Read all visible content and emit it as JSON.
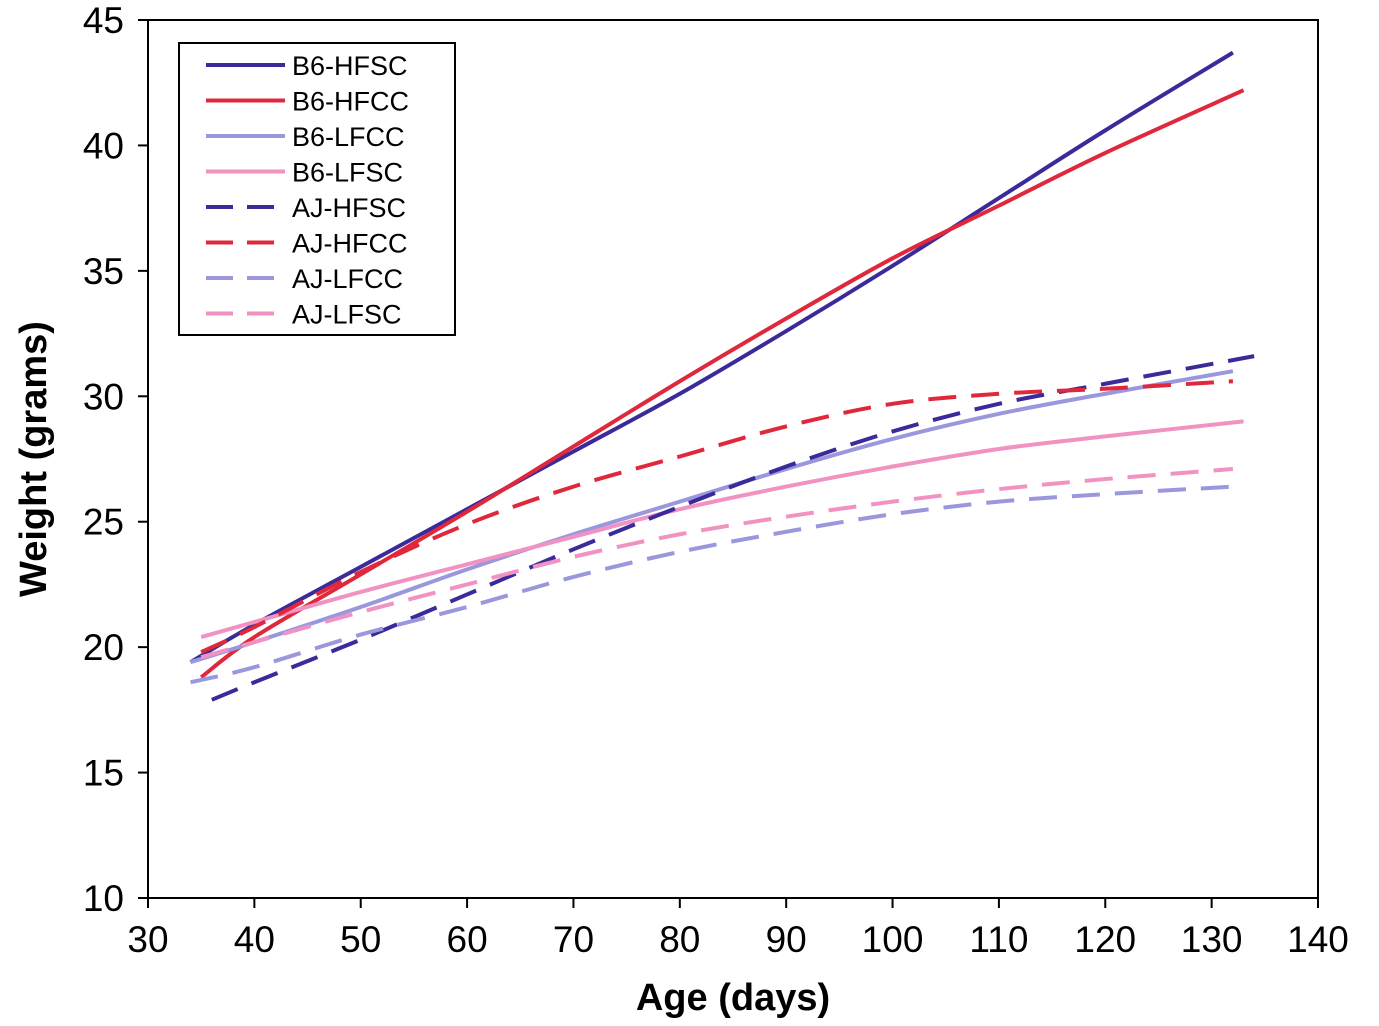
{
  "chart_data": {
    "type": "line",
    "xlabel": "Age (days)",
    "ylabel": "Weight (grams)",
    "xlim": [
      30,
      140
    ],
    "ylim": [
      10,
      45
    ],
    "xticks": [
      30,
      40,
      50,
      60,
      70,
      80,
      90,
      100,
      110,
      120,
      130,
      140
    ],
    "yticks": [
      10,
      15,
      20,
      25,
      30,
      35,
      40,
      45
    ],
    "xtick_labels": [
      "30",
      "40",
      "50",
      "60",
      "70",
      "80",
      "90",
      "100",
      "110",
      "120",
      "130",
      "140"
    ],
    "ytick_labels": [
      "10",
      "15",
      "20",
      "25",
      "30",
      "35",
      "40",
      "45"
    ],
    "grid": false,
    "legend_position": "top-left",
    "series": [
      {
        "name": "B6-HFSC",
        "color": "#3a2a9a",
        "dash": "solid",
        "x": [
          34,
          40,
          50,
          60,
          70,
          80,
          90,
          100,
          110,
          120,
          132
        ],
        "y": [
          19.4,
          20.9,
          23.2,
          25.5,
          27.8,
          30.1,
          32.6,
          35.2,
          37.9,
          40.6,
          43.7
        ]
      },
      {
        "name": "B6-HFCC",
        "color": "#e0283c",
        "dash": "solid",
        "x": [
          35,
          40,
          50,
          60,
          70,
          80,
          90,
          100,
          110,
          120,
          133
        ],
        "y": [
          18.8,
          20.4,
          22.9,
          25.4,
          28.0,
          30.6,
          33.1,
          35.5,
          37.6,
          39.7,
          42.2
        ]
      },
      {
        "name": "B6-LFCC",
        "color": "#9b97dd",
        "dash": "solid",
        "x": [
          34,
          40,
          50,
          60,
          70,
          80,
          90,
          100,
          110,
          120,
          132
        ],
        "y": [
          19.4,
          20.2,
          21.6,
          23.1,
          24.5,
          25.8,
          27.1,
          28.3,
          29.3,
          30.1,
          31.0
        ]
      },
      {
        "name": "B6-LFSC",
        "color": "#f192c2",
        "dash": "solid",
        "x": [
          35,
          40,
          50,
          60,
          70,
          80,
          90,
          100,
          110,
          120,
          133
        ],
        "y": [
          20.4,
          21.0,
          22.2,
          23.3,
          24.4,
          25.5,
          26.4,
          27.2,
          27.9,
          28.4,
          29.0
        ]
      },
      {
        "name": "AJ-HFSC",
        "color": "#3a2a9a",
        "dash": "dashed",
        "x": [
          36,
          40,
          50,
          60,
          70,
          80,
          90,
          100,
          110,
          120,
          134
        ],
        "y": [
          17.9,
          18.6,
          20.3,
          22.1,
          23.9,
          25.6,
          27.2,
          28.6,
          29.7,
          30.5,
          31.6
        ]
      },
      {
        "name": "AJ-HFCC",
        "color": "#e0283c",
        "dash": "dashed",
        "x": [
          35,
          40,
          50,
          60,
          70,
          80,
          90,
          100,
          110,
          120,
          132
        ],
        "y": [
          19.8,
          20.8,
          23.0,
          24.9,
          26.4,
          27.6,
          28.8,
          29.7,
          30.1,
          30.3,
          30.6
        ]
      },
      {
        "name": "AJ-LFCC",
        "color": "#9b97dd",
        "dash": "dashed",
        "x": [
          34,
          40,
          50,
          60,
          70,
          80,
          90,
          100,
          110,
          120,
          132
        ],
        "y": [
          18.6,
          19.2,
          20.5,
          21.6,
          22.8,
          23.8,
          24.6,
          25.3,
          25.8,
          26.1,
          26.4
        ]
      },
      {
        "name": "AJ-LFSC",
        "color": "#f192c2",
        "dash": "dashed",
        "x": [
          35,
          40,
          50,
          60,
          70,
          80,
          90,
          100,
          110,
          120,
          132
        ],
        "y": [
          19.6,
          20.2,
          21.4,
          22.5,
          23.6,
          24.5,
          25.2,
          25.8,
          26.3,
          26.7,
          27.1
        ]
      }
    ]
  }
}
